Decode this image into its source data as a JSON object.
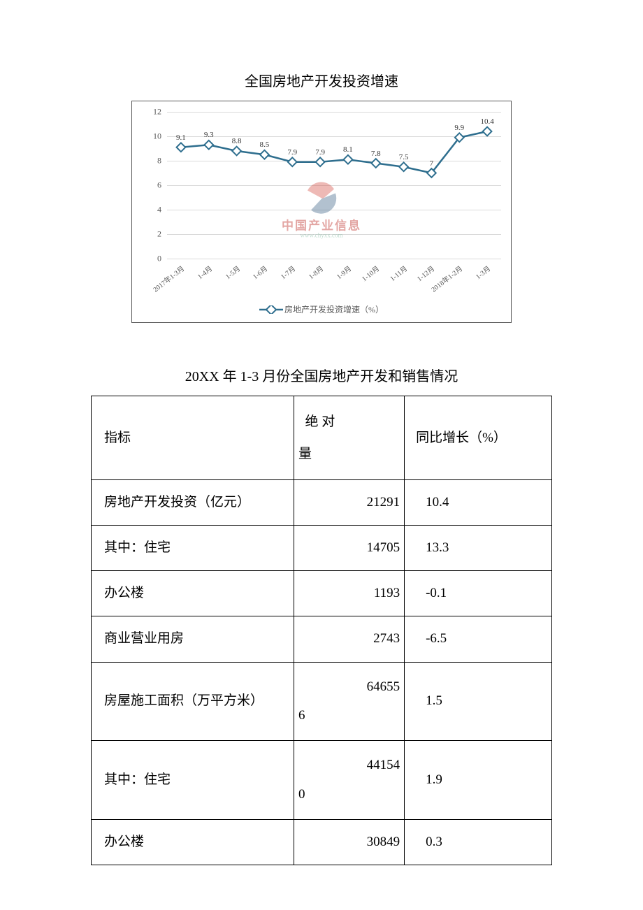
{
  "chart": {
    "title": "全国房地产开发投资增速",
    "type": "line",
    "legend_label": "房地产开发投资增速（%）",
    "categories": [
      "2017年1-3月",
      "1-4月",
      "1-5月",
      "1-6月",
      "1-7月",
      "1-8月",
      "1-9月",
      "1-10月",
      "1-11月",
      "1-12月",
      "2018年1-2月",
      "1-3月"
    ],
    "values": [
      9.1,
      9.3,
      8.8,
      8.5,
      7.9,
      7.9,
      8.1,
      7.8,
      7.5,
      7,
      9.9,
      10.4
    ],
    "value_labels": [
      "9.1",
      "9.3",
      "8.8",
      "8.5",
      "7.9",
      "7.9",
      "8.1",
      "7.8",
      "7.5",
      "7",
      "9.9",
      "10.4"
    ],
    "ylim": [
      0,
      12
    ],
    "ytick_step": 2,
    "yticks": [
      0,
      2,
      4,
      6,
      8,
      10,
      12
    ],
    "line_color": "#2e6e8e",
    "marker_fill": "#ffffff",
    "marker_stroke": "#2e6e8e",
    "marker_size": 9,
    "line_width": 2.5,
    "grid_color": "#d9d9d9",
    "axis_text_color": "#595959",
    "data_label_color": "#343434",
    "background_color": "#ffffff",
    "border_color": "#595959",
    "label_fontsize": 11,
    "tick_fontsize": 12
  },
  "watermark": {
    "text": "中国产业信息",
    "url": "www.chyxx.com",
    "text_color": "#c94f4a",
    "url_color": "#7fb89f",
    "logo_red": "#d65a52",
    "logo_blue": "#4a6f8f"
  },
  "table": {
    "title": "20XX 年 1-3 月份全国房地产开发和销售情况",
    "columns": [
      "指标",
      "绝 对量",
      "同比增长（%）"
    ],
    "rows": [
      {
        "indicator": "房地产开发投资（亿元）",
        "absolute": "21291",
        "growth": "10.4"
      },
      {
        "indicator": "其中：住宅",
        "absolute": "14705",
        "growth": "13.3"
      },
      {
        "indicator": "办公楼",
        "absolute": "1193",
        "growth": "-0.1"
      },
      {
        "indicator": "商业营业用房",
        "absolute": "2743",
        "growth": "-6.5"
      },
      {
        "indicator": "房屋施工面积（万平方米）",
        "absolute": "646556",
        "growth": "1.5"
      },
      {
        "indicator": "其中：住宅",
        "absolute": "441540",
        "growth": "1.9"
      },
      {
        "indicator": "办公楼",
        "absolute": "30849",
        "growth": "0.3"
      }
    ],
    "border_color": "#000000",
    "fontsize": 19
  }
}
